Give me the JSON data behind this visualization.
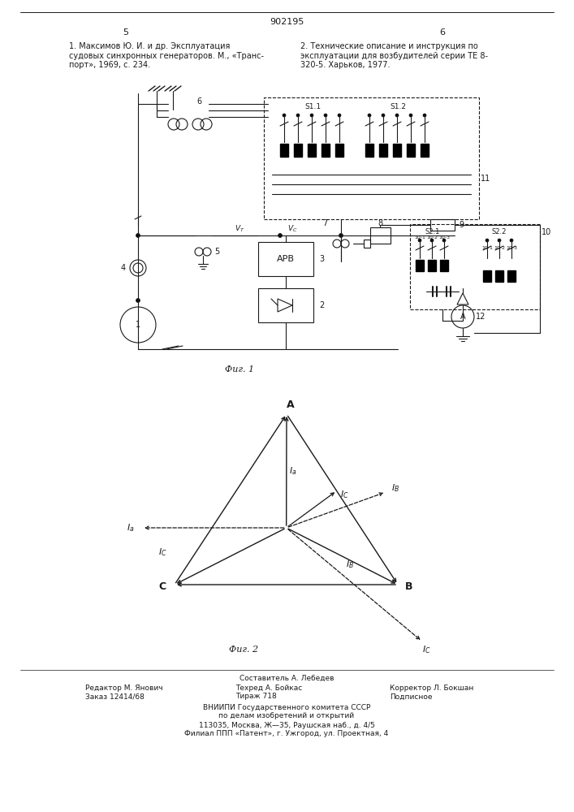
{
  "page_title": "902195",
  "page_col_left": "5",
  "page_col_right": "6",
  "ref1_text": "1. Максимов Ю. И. и др. Эксплуатация\nсудовых синхронных генераторов. М., «Транс-\nпорт», 1969, с. 234.",
  "ref2_text": "2. Технические описание и инструкция по\nэксплуатации для возбудителей серии ТЕ 8-\n320-5. Харьков, 1977.",
  "fig1_caption": "Фиг. 1",
  "fig2_caption": "Фиг. 2",
  "footer_comp": "Составитель А. Лебедев",
  "footer_ed": "Редактор М. Янович",
  "footer_tech": "Техред А. Бойкас",
  "footer_corr": "Корректор Л. Бокшан",
  "footer_zak": "Заказ 12414/68",
  "footer_tir": "Тираж 718",
  "footer_podp": "Подписное",
  "footer_vniip": "ВНИИПИ Государственного комитета СССР",
  "footer_del": "по делам изобретений и открытий",
  "footer_addr1": "113035, Москва, Ж—35, Раушская наб., д. 4/5",
  "footer_addr2": "Филиал ППП «Патент», г. Ужгород, ул. Проектная, 4",
  "bg_color": "#ffffff",
  "line_color": "#1a1a1a",
  "text_color": "#1a1a1a"
}
